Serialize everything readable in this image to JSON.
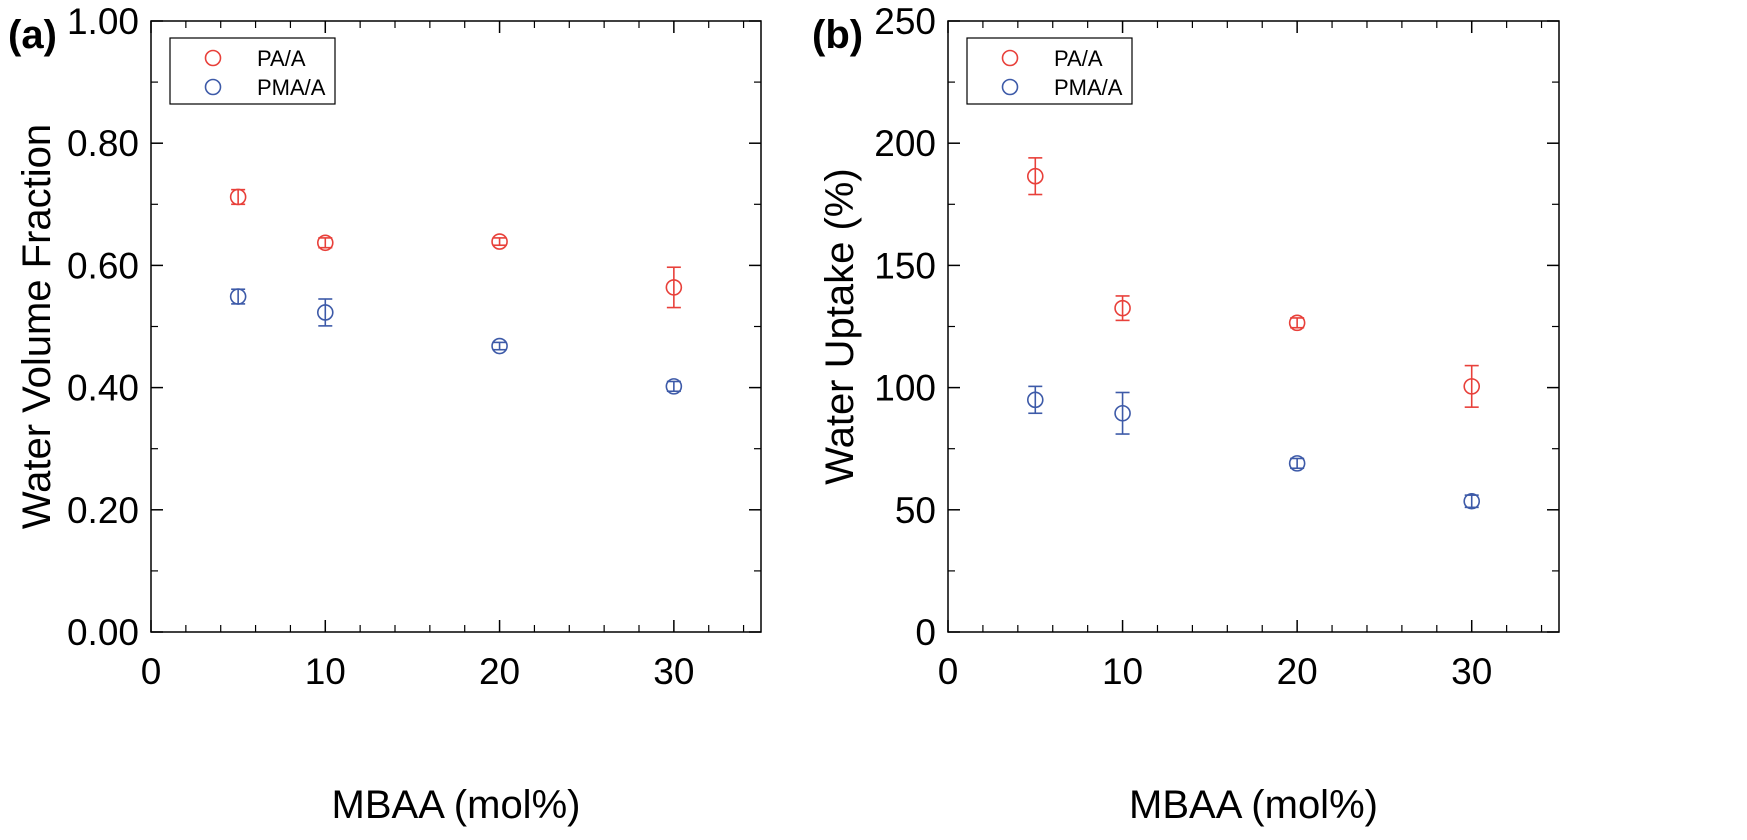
{
  "chart_data": [
    {
      "type": "scatter",
      "panel_label": "(a)",
      "xlabel": "MBAA (mol%)",
      "ylabel": "Water Volume Fraction",
      "xlim": [
        0,
        35
      ],
      "ylim": [
        0,
        1
      ],
      "x_ticks": [
        0,
        10,
        20,
        30
      ],
      "x_tick_labels": [
        "0",
        "10",
        "20",
        "30"
      ],
      "y_ticks": [
        0,
        0.2,
        0.4,
        0.6,
        0.8,
        1.0
      ],
      "y_tick_labels": [
        "0.00",
        "0.20",
        "0.40",
        "0.60",
        "0.80",
        "1.00"
      ],
      "grid": false,
      "legend_position": "top-left",
      "series": [
        {
          "name": "PA/A",
          "color": "#e8403a",
          "marker": "open-circle",
          "x": [
            5,
            10,
            20,
            30
          ],
          "y": [
            0.712,
            0.637,
            0.639,
            0.564
          ],
          "yerr": [
            0.012,
            0.008,
            0.006,
            0.033
          ]
        },
        {
          "name": "PMA/A",
          "color": "#3d5aa8",
          "marker": "open-circle",
          "x": [
            5,
            10,
            20,
            30
          ],
          "y": [
            0.549,
            0.523,
            0.468,
            0.402
          ],
          "yerr": [
            0.012,
            0.022,
            0.006,
            0.008
          ]
        }
      ]
    },
    {
      "type": "scatter",
      "panel_label": "(b)",
      "xlabel": "MBAA (mol%)",
      "ylabel": "Water Uptake (%)",
      "xlim": [
        0,
        35
      ],
      "ylim": [
        0,
        250
      ],
      "x_ticks": [
        0,
        10,
        20,
        30
      ],
      "x_tick_labels": [
        "0",
        "10",
        "20",
        "30"
      ],
      "y_ticks": [
        0,
        50,
        100,
        150,
        200,
        250
      ],
      "y_tick_labels": [
        "0",
        "50",
        "100",
        "150",
        "200",
        "250"
      ],
      "grid": false,
      "legend_position": "top-left",
      "series": [
        {
          "name": "PA/A",
          "color": "#e8403a",
          "marker": "open-circle",
          "x": [
            5,
            10,
            20,
            30
          ],
          "y": [
            186.5,
            132.5,
            126.5,
            100.5
          ],
          "yerr": [
            7.5,
            5,
            2,
            8.5
          ]
        },
        {
          "name": "PMA/A",
          "color": "#3d5aa8",
          "marker": "open-circle",
          "x": [
            5,
            10,
            20,
            30
          ],
          "y": [
            95,
            89.5,
            69,
            53.5
          ],
          "yerr": [
            5.5,
            8.5,
            2,
            2.5
          ]
        }
      ]
    }
  ]
}
